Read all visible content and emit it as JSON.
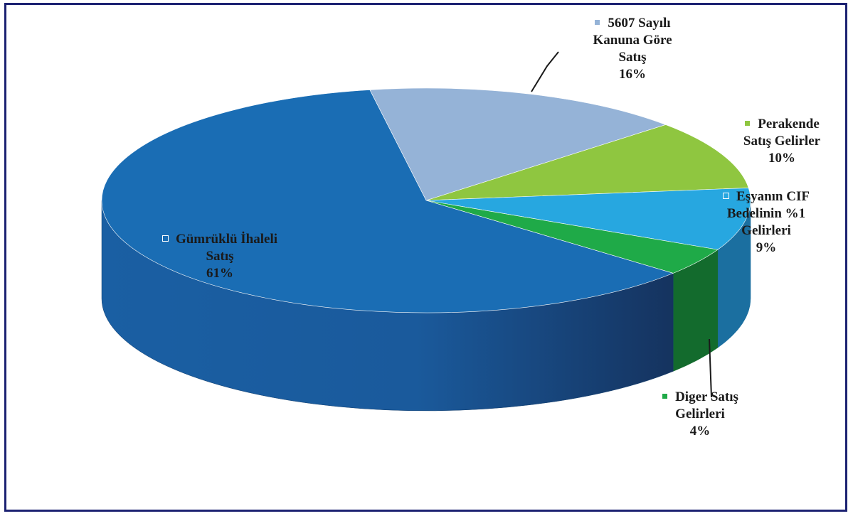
{
  "chart_data": {
    "type": "pie",
    "title": "",
    "categories": [
      "5607 Sayılı Kanuna Göre Satış",
      "Perakende Satış Gelirler",
      "Eşyanın CIF Bedelinin %1 Gelirleri",
      "Diger Satış Gelirleri",
      "Gümrüklü İhaleli Satış"
    ],
    "values": [
      16,
      10,
      9,
      4,
      61
    ],
    "unit": "%",
    "colors": [
      "#95b3d7",
      "#8fc640",
      "#27a7e0",
      "#1faa48",
      "#1a6db4"
    ],
    "labels": {
      "s5607": {
        "lines": [
          "5607 Sayılı",
          "Kanuna Göre",
          "Satış"
        ],
        "pct": "16%"
      },
      "perakende": {
        "lines": [
          "Perakende",
          "Satış Gelirler"
        ],
        "pct": "10%"
      },
      "esya": {
        "lines": [
          "Eşyanın CIF",
          "Bedelinin %1",
          "Gelirleri"
        ],
        "pct": "9%"
      },
      "diger": {
        "lines": [
          "Diger Satış",
          "Gelirleri"
        ],
        "pct": "4%"
      },
      "gumruk": {
        "lines": [
          "Gümrüklü İhaleli",
          "Satış"
        ],
        "pct": "61%"
      }
    }
  }
}
